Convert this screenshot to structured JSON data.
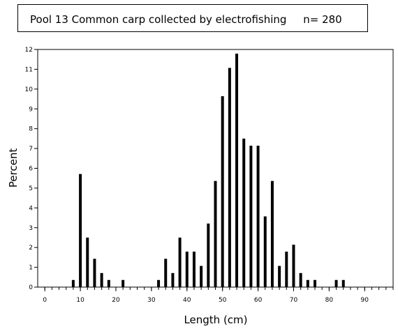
{
  "chart_data": {
    "type": "bar",
    "title": "Pool 13 Common carp collected by electrofishing     n= 280",
    "xlabel": "Length (cm)",
    "ylabel": "Percent",
    "xlim": [
      -2,
      98
    ],
    "ylim": [
      0,
      12
    ],
    "x_ticks": [
      0,
      10,
      20,
      30,
      40,
      50,
      60,
      70,
      80,
      90
    ],
    "y_ticks": [
      0,
      1,
      2,
      3,
      4,
      5,
      6,
      7,
      8,
      9,
      10,
      11,
      12
    ],
    "grid": false,
    "bar_color": "#000000",
    "x": [
      8,
      10,
      12,
      14,
      16,
      18,
      22,
      32,
      34,
      36,
      38,
      40,
      42,
      44,
      46,
      48,
      50,
      52,
      54,
      56,
      58,
      60,
      62,
      64,
      66,
      68,
      70,
      72,
      74,
      76,
      82,
      84
    ],
    "values": [
      0.36,
      5.71,
      2.5,
      1.43,
      0.71,
      0.36,
      0.36,
      0.36,
      1.43,
      0.71,
      2.5,
      1.79,
      1.79,
      1.07,
      3.21,
      5.36,
      9.64,
      11.07,
      11.79,
      7.5,
      7.14,
      7.14,
      3.57,
      5.36,
      1.07,
      1.79,
      2.14,
      0.71,
      0.36,
      0.36,
      0.36,
      0.36
    ]
  }
}
